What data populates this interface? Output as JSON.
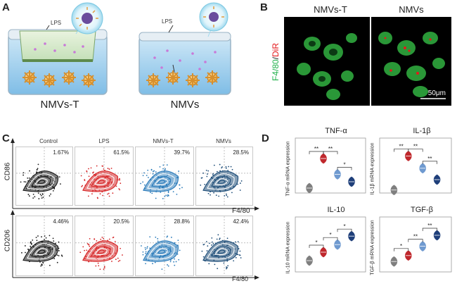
{
  "panelA": {
    "label": "A",
    "lps_left": "LPS",
    "lps_right": "LPS",
    "caption_left": "NMVs-T",
    "caption_right": "NMVs"
  },
  "panelB": {
    "label": "B",
    "col_left": "NMVs-T",
    "col_right": "NMVs",
    "ylabel_f480": "F4/80",
    "ylabel_sep": "/",
    "ylabel_dir": "DiR",
    "scalebar": "50μm",
    "colors": {
      "f480": "#22b14c",
      "dir": "#e31a1c"
    }
  },
  "panelC": {
    "label": "C",
    "columns": [
      "Control",
      "LPS",
      "NMVs-T",
      "NMVs"
    ],
    "row1_ylabel": "CD86",
    "row2_ylabel": "CD206",
    "xlabel": "F4/80",
    "row1_pcts": [
      "1.67%",
      "61.5%",
      "39.7%",
      "28.5%"
    ],
    "row2_pcts": [
      "4.46%",
      "20.5%",
      "28.8%",
      "42.4%"
    ],
    "colors": [
      "#1a1a1a",
      "#d62728",
      "#2b7bba",
      "#1f4e79"
    ]
  },
  "panelD": {
    "label": "D",
    "group_colors": [
      "#7f7f7f",
      "#c0282d",
      "#6f9ad0",
      "#1f3f7a"
    ],
    "plots": [
      {
        "title": "TNF-α",
        "ylabel": "TNF-α mRNA expression",
        "values": [
          1.0,
          15.0,
          7.5,
          4.0
        ],
        "ymax": 20,
        "sig": [
          {
            "from": 0,
            "to": 1,
            "label": "**"
          },
          {
            "from": 1,
            "to": 2,
            "label": "**"
          },
          {
            "from": 2,
            "to": 3,
            "label": "*"
          }
        ]
      },
      {
        "title": "IL-1β",
        "ylabel": "IL-1β mRNA expression",
        "values": [
          1.0,
          210.0,
          135.0,
          65.0
        ],
        "ymax": 260,
        "sig": [
          {
            "from": 0,
            "to": 1,
            "label": "**"
          },
          {
            "from": 1,
            "to": 2,
            "label": "**"
          },
          {
            "from": 2,
            "to": 3,
            "label": "**"
          }
        ]
      },
      {
        "title": "IL-10",
        "ylabel": "IL-10 mRNA expression",
        "values": [
          0.5,
          1.0,
          1.45,
          1.95
        ],
        "ymax": 2.5,
        "sig": [
          {
            "from": 0,
            "to": 1,
            "label": "*"
          },
          {
            "from": 1,
            "to": 2,
            "label": "*"
          },
          {
            "from": 2,
            "to": 3,
            "label": "*"
          }
        ]
      },
      {
        "title": "TGF-β",
        "ylabel": "TGF-β mRNA expression",
        "values": [
          0.45,
          0.8,
          1.35,
          2.0
        ],
        "ymax": 2.5,
        "sig": [
          {
            "from": 0,
            "to": 1,
            "label": "*"
          },
          {
            "from": 1,
            "to": 2,
            "label": "**"
          },
          {
            "from": 2,
            "to": 3,
            "label": "**"
          }
        ]
      }
    ]
  }
}
